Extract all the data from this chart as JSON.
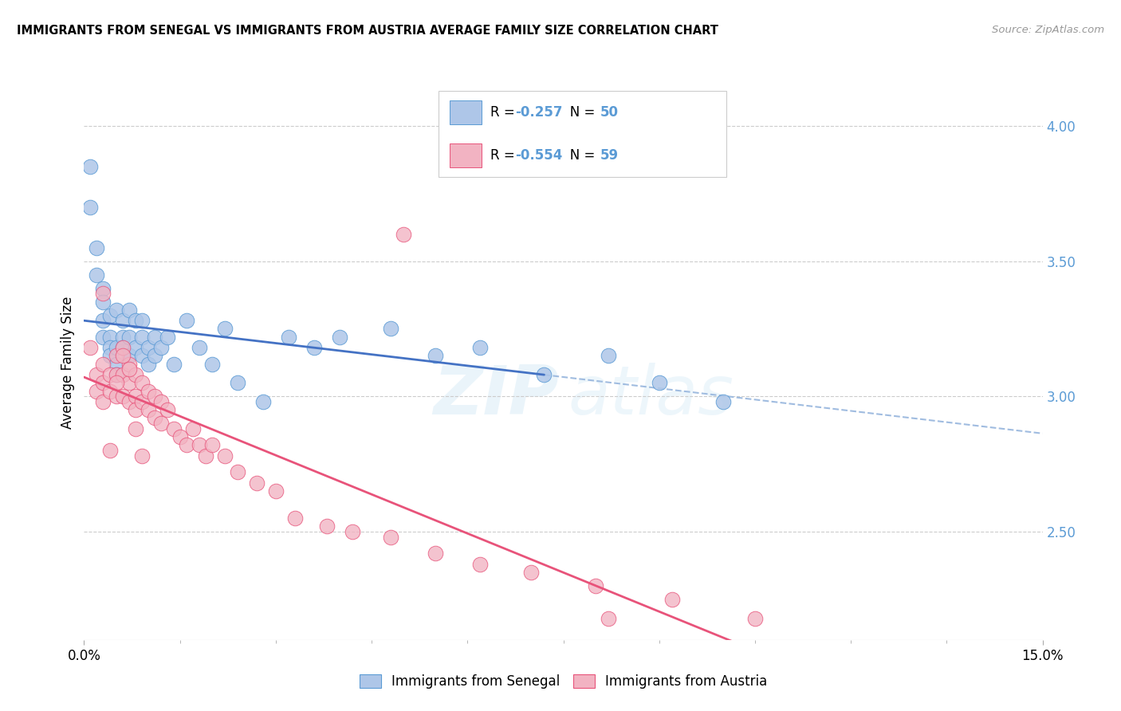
{
  "title": "IMMIGRANTS FROM SENEGAL VS IMMIGRANTS FROM AUSTRIA AVERAGE FAMILY SIZE CORRELATION CHART",
  "source": "Source: ZipAtlas.com",
  "ylabel": "Average Family Size",
  "yaxis_color": "#5b9bd5",
  "xmin": 0.0,
  "xmax": 0.15,
  "ymin": 2.1,
  "ymax": 4.15,
  "yticks": [
    2.5,
    3.0,
    3.5,
    4.0
  ],
  "color_senegal": "#aec6e8",
  "color_austria": "#f2b3c2",
  "edge_senegal": "#5b9bd5",
  "edge_austria": "#e8537a",
  "line_color_senegal": "#4472c4",
  "line_color_austria": "#e8537a",
  "dashed_color": "#a0bce0",
  "legend_label1": "Immigrants from Senegal",
  "legend_label2": "Immigrants from Austria",
  "senegal_x": [
    0.001,
    0.001,
    0.002,
    0.002,
    0.003,
    0.003,
    0.003,
    0.003,
    0.004,
    0.004,
    0.004,
    0.004,
    0.005,
    0.005,
    0.005,
    0.005,
    0.006,
    0.006,
    0.006,
    0.007,
    0.007,
    0.007,
    0.008,
    0.008,
    0.009,
    0.009,
    0.009,
    0.01,
    0.01,
    0.011,
    0.011,
    0.012,
    0.013,
    0.014,
    0.016,
    0.018,
    0.02,
    0.022,
    0.024,
    0.028,
    0.032,
    0.036,
    0.04,
    0.048,
    0.055,
    0.062,
    0.072,
    0.082,
    0.09,
    0.1
  ],
  "senegal_y": [
    3.85,
    3.7,
    3.55,
    3.45,
    3.4,
    3.35,
    3.28,
    3.22,
    3.3,
    3.22,
    3.18,
    3.15,
    3.32,
    3.18,
    3.12,
    3.08,
    3.28,
    3.22,
    3.18,
    3.32,
    3.22,
    3.15,
    3.28,
    3.18,
    3.28,
    3.22,
    3.15,
    3.18,
    3.12,
    3.22,
    3.15,
    3.18,
    3.22,
    3.12,
    3.28,
    3.18,
    3.12,
    3.25,
    3.05,
    2.98,
    3.22,
    3.18,
    3.22,
    3.25,
    3.15,
    3.18,
    3.08,
    3.15,
    3.05,
    2.98
  ],
  "austria_x": [
    0.001,
    0.002,
    0.002,
    0.003,
    0.003,
    0.003,
    0.004,
    0.004,
    0.005,
    0.005,
    0.005,
    0.006,
    0.006,
    0.006,
    0.007,
    0.007,
    0.007,
    0.008,
    0.008,
    0.008,
    0.009,
    0.009,
    0.01,
    0.01,
    0.011,
    0.011,
    0.012,
    0.012,
    0.013,
    0.014,
    0.015,
    0.016,
    0.017,
    0.018,
    0.019,
    0.02,
    0.022,
    0.024,
    0.027,
    0.03,
    0.033,
    0.038,
    0.042,
    0.048,
    0.055,
    0.062,
    0.07,
    0.08,
    0.092,
    0.105,
    0.003,
    0.004,
    0.005,
    0.006,
    0.007,
    0.008,
    0.009,
    0.05,
    0.082
  ],
  "austria_y": [
    3.18,
    3.08,
    3.02,
    3.12,
    3.05,
    2.98,
    3.08,
    3.02,
    3.15,
    3.08,
    3.0,
    3.18,
    3.08,
    3.0,
    3.12,
    3.05,
    2.98,
    3.08,
    3.0,
    2.95,
    3.05,
    2.98,
    3.02,
    2.95,
    3.0,
    2.92,
    2.98,
    2.9,
    2.95,
    2.88,
    2.85,
    2.82,
    2.88,
    2.82,
    2.78,
    2.82,
    2.78,
    2.72,
    2.68,
    2.65,
    2.55,
    2.52,
    2.5,
    2.48,
    2.42,
    2.38,
    2.35,
    2.3,
    2.25,
    2.18,
    3.38,
    2.8,
    3.05,
    3.15,
    3.1,
    2.88,
    2.78,
    3.6,
    2.18
  ]
}
